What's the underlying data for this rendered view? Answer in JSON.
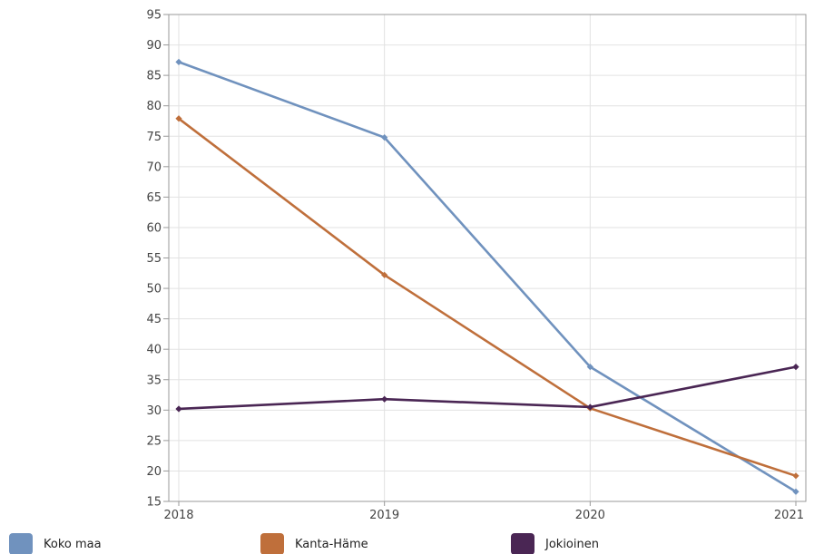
{
  "chart_data": {
    "type": "line",
    "title": "",
    "xlabel": "",
    "ylabel": "",
    "x": [
      "2018",
      "2019",
      "2020",
      "2021"
    ],
    "ylim": [
      15,
      95
    ],
    "yticks": [
      "15",
      "20",
      "25",
      "30",
      "35",
      "40",
      "45",
      "50",
      "55",
      "60",
      "65",
      "70",
      "75",
      "80",
      "85",
      "90",
      "95"
    ],
    "grid": true,
    "legend_position": "bottom",
    "series": [
      {
        "name": "Koko maa",
        "color": "#7092be",
        "values": [
          87.2,
          74.8,
          37.1,
          16.6
        ]
      },
      {
        "name": "Kanta-Häme",
        "color": "#bf6f3b",
        "values": [
          77.9,
          52.2,
          30.3,
          19.2
        ]
      },
      {
        "name": "Jokioinen",
        "color": "#4a2654",
        "values": [
          30.2,
          31.8,
          30.5,
          37.1
        ]
      }
    ]
  }
}
